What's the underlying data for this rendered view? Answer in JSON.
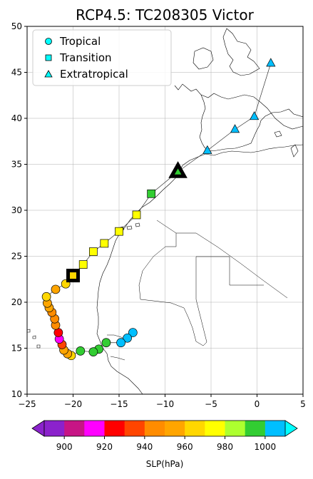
{
  "title": "RCP4.5: TC208305 Victor",
  "legend": {
    "placement": "upper-left",
    "entries": [
      {
        "label": "Tropical",
        "marker": "circle",
        "color": "#00ffff"
      },
      {
        "label": "Transition",
        "marker": "square",
        "color": "#00ffff"
      },
      {
        "label": "Extratropical",
        "marker": "triangle",
        "color": "#00ffff"
      }
    ]
  },
  "colorbar": {
    "label": "SLP(hPa)",
    "ticks": [
      "900",
      "920",
      "940",
      "960",
      "980",
      "1000"
    ],
    "bounds": [
      890,
      1010
    ],
    "colors": [
      "#8b22cc",
      "#c71585",
      "#ff00ff",
      "#ff0000",
      "#ff4500",
      "#ff8c00",
      "#ffa500",
      "#ffd700",
      "#ffff00",
      "#adff2f",
      "#32cd32",
      "#00bfff"
    ]
  },
  "chart_data": {
    "type": "scatter",
    "title": "RCP4.5: TC208305 Victor",
    "xlim": [
      -25,
      5
    ],
    "ylim": [
      10,
      50
    ],
    "xticks": [
      "−25",
      "−20",
      "−15",
      "−10",
      "−5",
      "0",
      "5"
    ],
    "yticks": [
      "10",
      "15",
      "20",
      "25",
      "30",
      "35",
      "40",
      "45",
      "50"
    ],
    "grid": true,
    "background": "coastline map",
    "track_points": [
      {
        "lon": -13.5,
        "lat": 16.7,
        "type": "tropical",
        "color": "#00bfff"
      },
      {
        "lon": -14.1,
        "lat": 16.1,
        "type": "tropical",
        "color": "#00bfff"
      },
      {
        "lon": -14.8,
        "lat": 15.6,
        "type": "tropical",
        "color": "#00bfff"
      },
      {
        "lon": -16.4,
        "lat": 15.6,
        "type": "tropical",
        "color": "#32cd32"
      },
      {
        "lon": -17.2,
        "lat": 14.9,
        "type": "tropical",
        "color": "#32cd32"
      },
      {
        "lon": -17.8,
        "lat": 14.6,
        "type": "tropical",
        "color": "#32cd32"
      },
      {
        "lon": -19.2,
        "lat": 14.7,
        "type": "tropical",
        "color": "#32cd32"
      },
      {
        "lon": -20.2,
        "lat": 14.2,
        "type": "tropical",
        "color": "#ffd700"
      },
      {
        "lon": -20.6,
        "lat": 14.4,
        "type": "tropical",
        "color": "#ffa500"
      },
      {
        "lon": -21.0,
        "lat": 14.8,
        "type": "tropical",
        "color": "#ffa500"
      },
      {
        "lon": -21.2,
        "lat": 15.4,
        "type": "tropical",
        "color": "#ff4500"
      },
      {
        "lon": -21.5,
        "lat": 16.0,
        "type": "tropical",
        "color": "#ff00ff"
      },
      {
        "lon": -21.6,
        "lat": 16.7,
        "type": "tropical",
        "color": "#ff0000"
      },
      {
        "lon": -21.9,
        "lat": 17.5,
        "type": "tropical",
        "color": "#ff8c00"
      },
      {
        "lon": -22.0,
        "lat": 18.2,
        "type": "tropical",
        "color": "#ff8c00"
      },
      {
        "lon": -22.3,
        "lat": 18.9,
        "type": "tropical",
        "color": "#ff8c00"
      },
      {
        "lon": -22.6,
        "lat": 19.4,
        "type": "tropical",
        "color": "#ffa500"
      },
      {
        "lon": -22.8,
        "lat": 19.9,
        "type": "tropical",
        "color": "#ffa500"
      },
      {
        "lon": -22.9,
        "lat": 20.6,
        "type": "tropical",
        "color": "#ffd700"
      },
      {
        "lon": -21.9,
        "lat": 21.4,
        "type": "tropical",
        "color": "#ffa500"
      },
      {
        "lon": -20.8,
        "lat": 22.0,
        "type": "tropical",
        "color": "#ffd700"
      },
      {
        "lon": -20.0,
        "lat": 22.9,
        "type": "transition",
        "color": "#ffd700",
        "highlight": true
      },
      {
        "lon": -18.9,
        "lat": 24.1,
        "type": "transition",
        "color": "#ffff00"
      },
      {
        "lon": -17.8,
        "lat": 25.5,
        "type": "transition",
        "color": "#ffff00"
      },
      {
        "lon": -16.6,
        "lat": 26.4,
        "type": "transition",
        "color": "#ffff00"
      },
      {
        "lon": -15.0,
        "lat": 27.7,
        "type": "transition",
        "color": "#ffff00"
      },
      {
        "lon": -13.1,
        "lat": 29.5,
        "type": "transition",
        "color": "#ffff00"
      },
      {
        "lon": -11.5,
        "lat": 31.8,
        "type": "transition",
        "color": "#32cd32"
      },
      {
        "lon": -8.6,
        "lat": 34.2,
        "type": "extratropical",
        "color": "#32cd32",
        "highlight": true
      },
      {
        "lon": -5.4,
        "lat": 36.5,
        "type": "extratropical",
        "color": "#00bfff"
      },
      {
        "lon": -2.4,
        "lat": 38.8,
        "type": "extratropical",
        "color": "#00bfff"
      },
      {
        "lon": -0.3,
        "lat": 40.2,
        "type": "extratropical",
        "color": "#00bfff"
      },
      {
        "lon": 1.5,
        "lat": 46.0,
        "type": "extratropical",
        "color": "#00bfff"
      }
    ]
  }
}
